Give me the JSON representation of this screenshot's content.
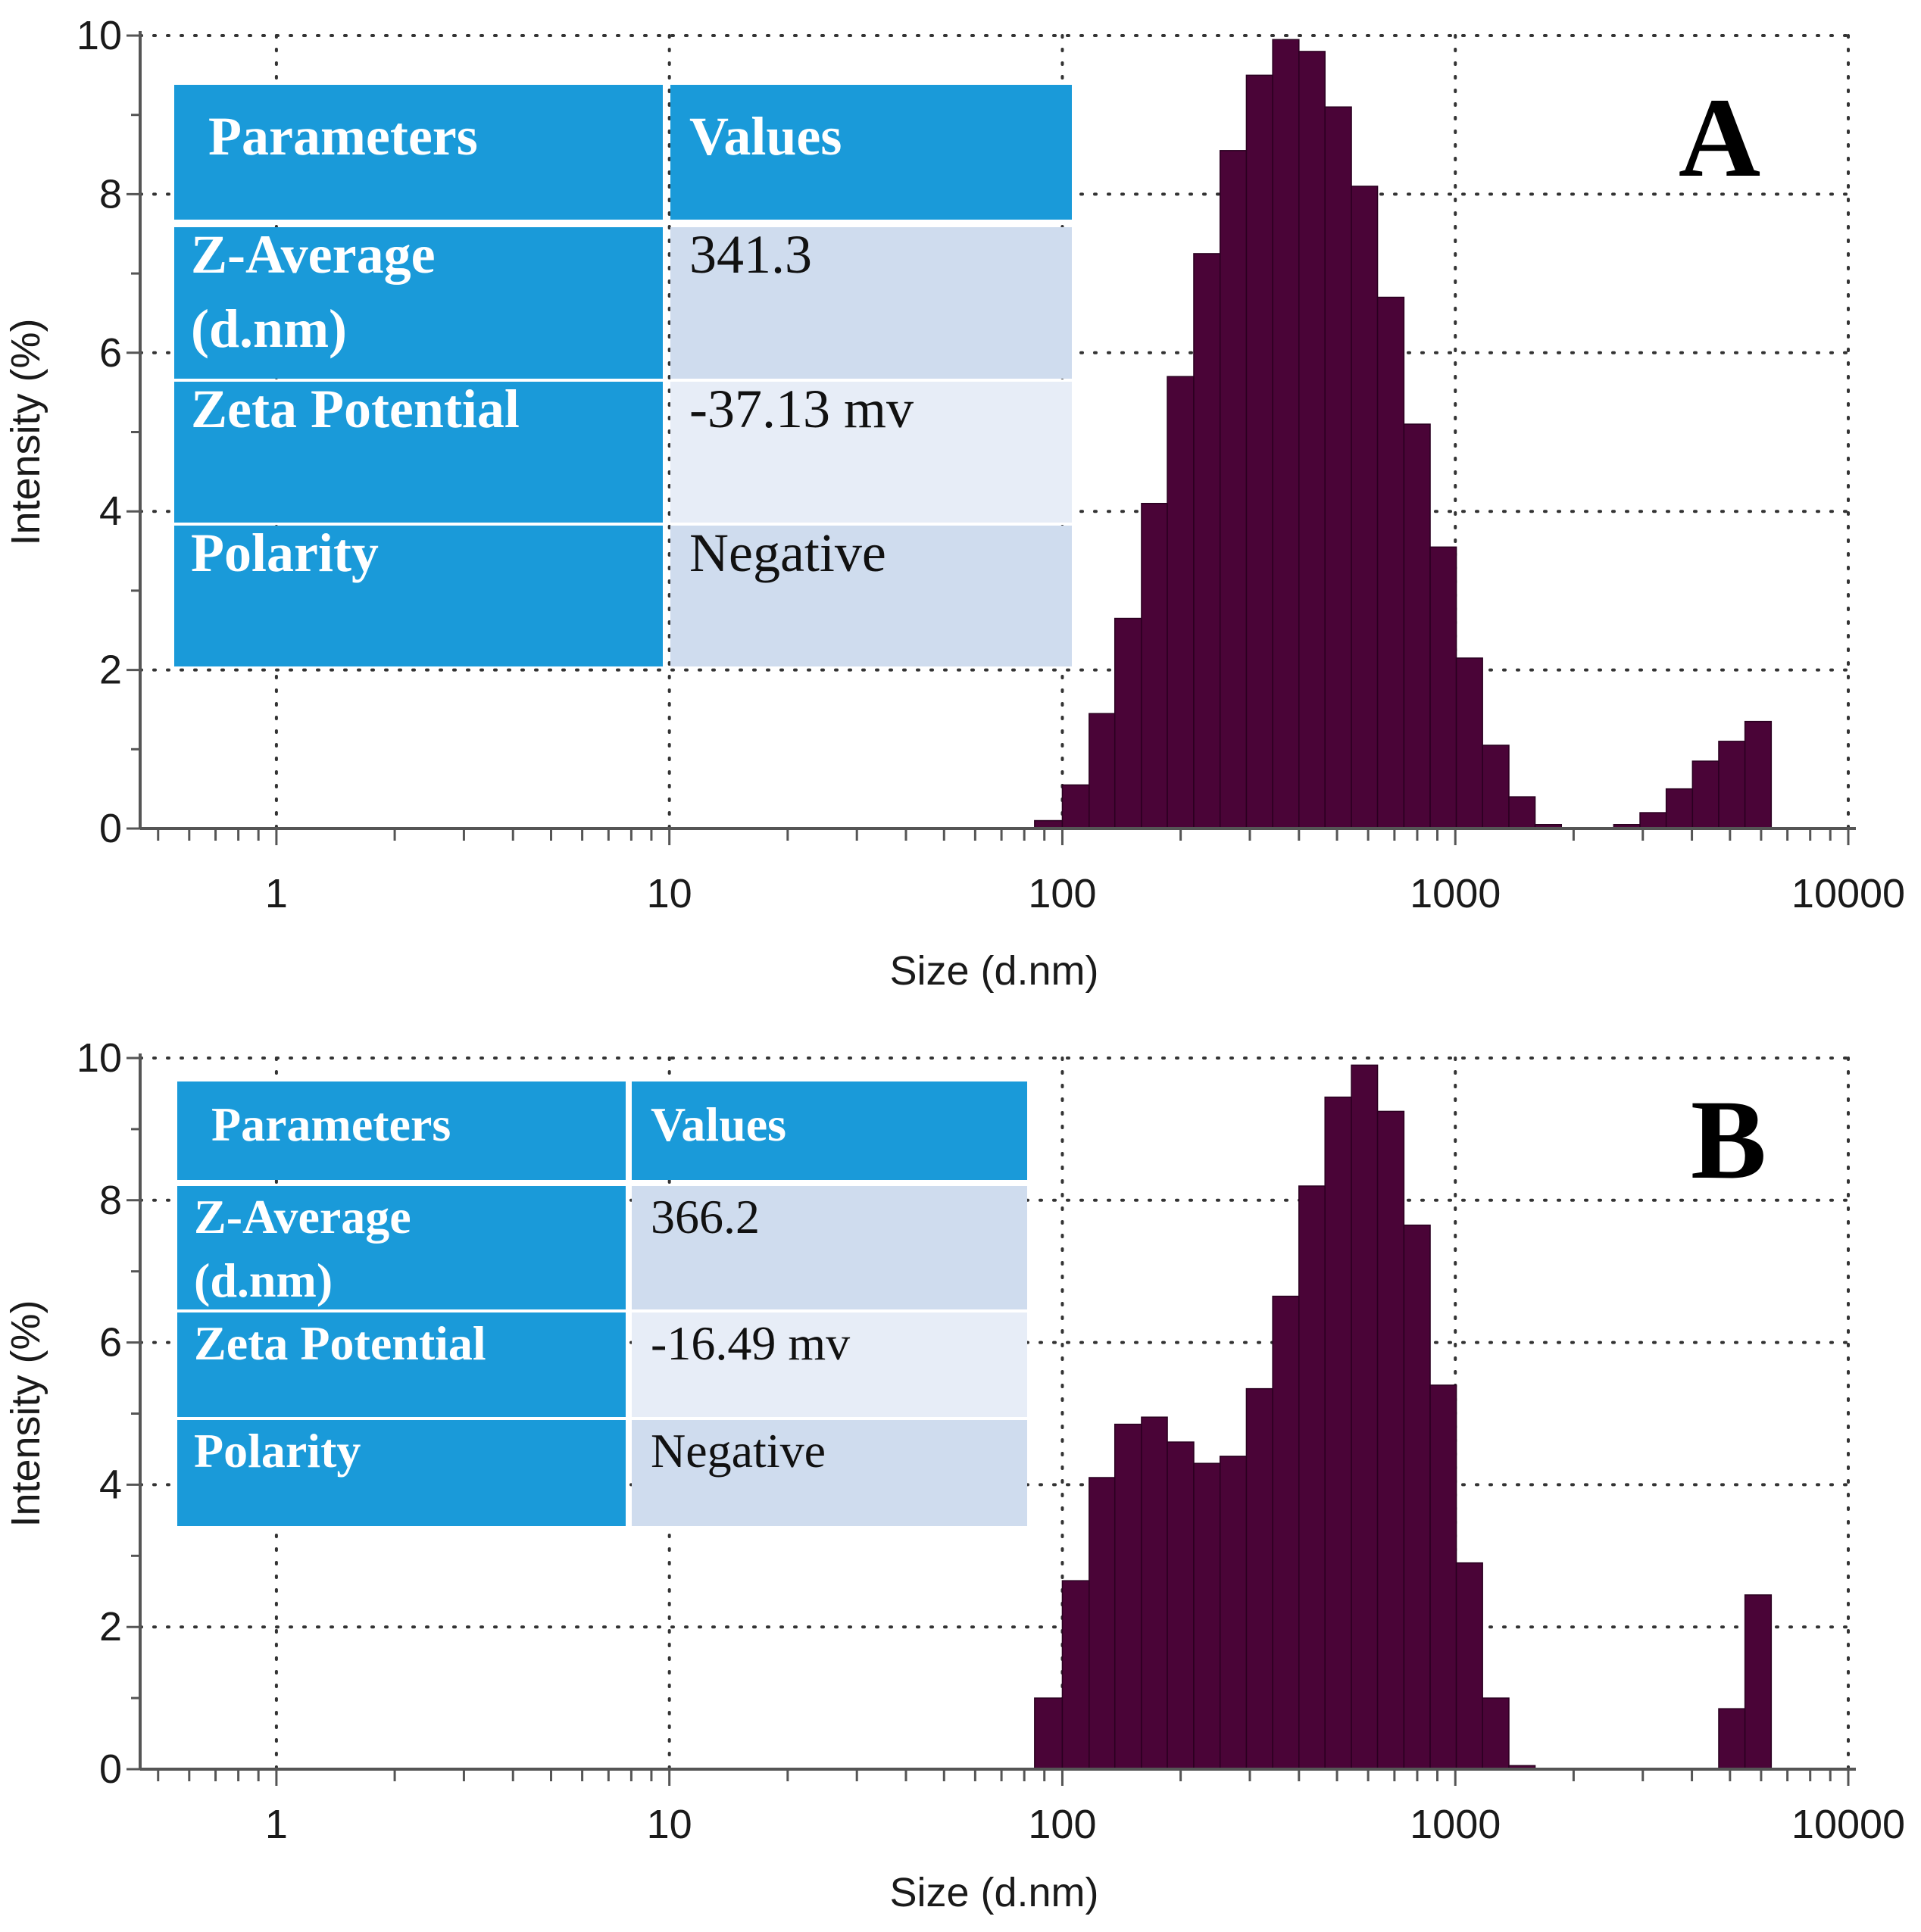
{
  "colors": {
    "bar": "#4a0437",
    "table_header": "#1a9ad9",
    "table_value_dark": "#cfdcee",
    "table_value_light": "#e7edf7",
    "axis": "#555555",
    "grid": "#333333"
  },
  "chart_data": [
    {
      "type": "bar",
      "panel": "A",
      "xscale": "log",
      "xlabel": "Size (d.nm)",
      "ylabel": "Intensity (%)",
      "xlim": [
        0.45,
        10000
      ],
      "ylim": [
        0,
        10
      ],
      "xticks": [
        1,
        10,
        100,
        1000,
        10000
      ],
      "xtick_labels": [
        "1",
        "10",
        "100",
        "1000",
        "10000"
      ],
      "yticks": [
        0,
        2,
        4,
        6,
        8,
        10
      ],
      "ytick_labels": [
        "0",
        "2",
        "4",
        "6",
        "8",
        "10"
      ],
      "bins": [
        {
          "from": 85,
          "to": 100,
          "value": 0.1
        },
        {
          "from": 100,
          "to": 117,
          "value": 0.55
        },
        {
          "from": 117,
          "to": 136,
          "value": 1.45
        },
        {
          "from": 136,
          "to": 159,
          "value": 2.65
        },
        {
          "from": 159,
          "to": 185,
          "value": 4.1
        },
        {
          "from": 185,
          "to": 216,
          "value": 5.7
        },
        {
          "from": 216,
          "to": 252,
          "value": 7.25
        },
        {
          "from": 252,
          "to": 294,
          "value": 8.55
        },
        {
          "from": 294,
          "to": 343,
          "value": 9.5
        },
        {
          "from": 343,
          "to": 400,
          "value": 9.95
        },
        {
          "from": 400,
          "to": 466,
          "value": 9.8
        },
        {
          "from": 466,
          "to": 544,
          "value": 9.1
        },
        {
          "from": 544,
          "to": 634,
          "value": 8.1
        },
        {
          "from": 634,
          "to": 740,
          "value": 6.7
        },
        {
          "from": 740,
          "to": 863,
          "value": 5.1
        },
        {
          "from": 863,
          "to": 1006,
          "value": 3.55
        },
        {
          "from": 1006,
          "to": 1173,
          "value": 2.15
        },
        {
          "from": 1173,
          "to": 1369,
          "value": 1.05
        },
        {
          "from": 1369,
          "to": 1596,
          "value": 0.4
        },
        {
          "from": 1596,
          "to": 1862,
          "value": 0.05
        },
        {
          "from": 2530,
          "to": 2951,
          "value": 0.05
        },
        {
          "from": 2951,
          "to": 3441,
          "value": 0.2
        },
        {
          "from": 3441,
          "to": 4014,
          "value": 0.5
        },
        {
          "from": 4014,
          "to": 4681,
          "value": 0.85
        },
        {
          "from": 4681,
          "to": 5459,
          "value": 1.1
        },
        {
          "from": 5459,
          "to": 6368,
          "value": 1.35
        }
      ],
      "table": {
        "headers": [
          "Parameters",
          "Values"
        ],
        "rows": [
          {
            "param_line1": "Z-Average",
            "param_line2": "(d.nm)",
            "value": "341.3"
          },
          {
            "param_line1": "Zeta Potential",
            "param_line2": "",
            "value": "-37.13 mv"
          },
          {
            "param_line1": "Polarity",
            "param_line2": "",
            "value": "Negative"
          }
        ]
      }
    },
    {
      "type": "bar",
      "panel": "B",
      "xscale": "log",
      "xlabel": "Size (d.nm)",
      "ylabel": "Intensity (%)",
      "xlim": [
        0.45,
        10000
      ],
      "ylim": [
        0,
        10
      ],
      "xticks": [
        1,
        10,
        100,
        1000,
        10000
      ],
      "xtick_labels": [
        "1",
        "10",
        "100",
        "1000",
        "10000"
      ],
      "yticks": [
        0,
        2,
        4,
        6,
        8,
        10
      ],
      "ytick_labels": [
        "0",
        "2",
        "4",
        "6",
        "8",
        "10"
      ],
      "bins": [
        {
          "from": 85,
          "to": 100,
          "value": 1.0
        },
        {
          "from": 100,
          "to": 117,
          "value": 2.65
        },
        {
          "from": 117,
          "to": 136,
          "value": 4.1
        },
        {
          "from": 136,
          "to": 159,
          "value": 4.85
        },
        {
          "from": 159,
          "to": 185,
          "value": 4.95
        },
        {
          "from": 185,
          "to": 216,
          "value": 4.6
        },
        {
          "from": 216,
          "to": 252,
          "value": 4.3
        },
        {
          "from": 252,
          "to": 294,
          "value": 4.4
        },
        {
          "from": 294,
          "to": 343,
          "value": 5.35
        },
        {
          "from": 343,
          "to": 400,
          "value": 6.65
        },
        {
          "from": 400,
          "to": 466,
          "value": 8.2
        },
        {
          "from": 466,
          "to": 544,
          "value": 9.45
        },
        {
          "from": 544,
          "to": 634,
          "value": 9.9
        },
        {
          "from": 634,
          "to": 740,
          "value": 9.25
        },
        {
          "from": 740,
          "to": 863,
          "value": 7.65
        },
        {
          "from": 863,
          "to": 1006,
          "value": 5.4
        },
        {
          "from": 1006,
          "to": 1173,
          "value": 2.9
        },
        {
          "from": 1173,
          "to": 1369,
          "value": 1.0
        },
        {
          "from": 1369,
          "to": 1596,
          "value": 0.05
        },
        {
          "from": 4681,
          "to": 5459,
          "value": 0.85
        },
        {
          "from": 5459,
          "to": 6368,
          "value": 2.45
        }
      ],
      "table": {
        "headers": [
          "Parameters",
          "Values"
        ],
        "rows": [
          {
            "param_line1": "Z-Average",
            "param_line2": "(d.nm)",
            "value": "366.2"
          },
          {
            "param_line1": "Zeta Potential",
            "param_line2": "",
            "value": "-16.49 mv"
          },
          {
            "param_line1": "Polarity",
            "param_line2": "",
            "value": "Negative"
          }
        ]
      }
    }
  ]
}
